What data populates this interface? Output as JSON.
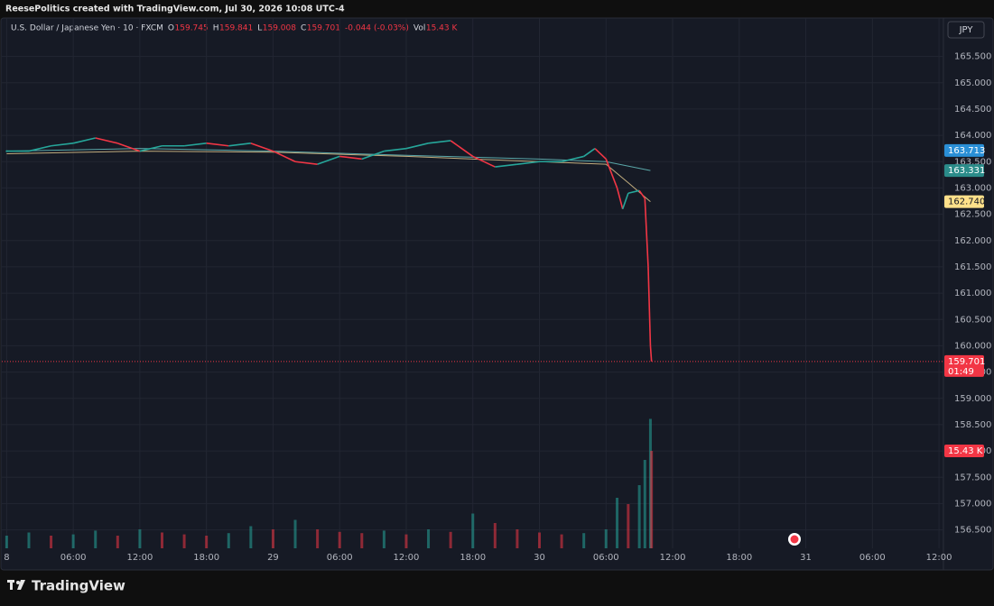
{
  "header": {
    "text": "ReesePolitics created with TradingView.com, Jul 30, 2026 10:08 UTC-4"
  },
  "footer": {
    "brand": "TradingView"
  },
  "currency_button": "JPY",
  "legend": {
    "symbol": "U.S. Dollar / Japanese Yen · 10 · FXCM",
    "open_label": "O",
    "open": 159.745,
    "high_label": "H",
    "high": 159.841,
    "low_label": "L",
    "low": 159.008,
    "close_label": "C",
    "close": 159.701,
    "change": -0.044,
    "change_pct": "(-0.03%)",
    "volume_label": "Vol",
    "volume": "15.43 K"
  },
  "chart_data": {
    "type": "line",
    "grid": true,
    "ylim": [
      156.15,
      166.23
    ],
    "yticks": [
      {
        "value": 156.5,
        "label": "156.500"
      },
      {
        "value": 157,
        "label": "157.000"
      },
      {
        "value": 157.5,
        "label": "157.500"
      },
      {
        "value": 158,
        "label": "158.000"
      },
      {
        "value": 158.5,
        "label": "158.500"
      },
      {
        "value": 159,
        "label": "159.000"
      },
      {
        "value": 159.5,
        "label": "159.500"
      },
      {
        "value": 160,
        "label": "160.000"
      },
      {
        "value": 160.5,
        "label": "160.500"
      },
      {
        "value": 161,
        "label": "161.000"
      },
      {
        "value": 161.5,
        "label": "161.500"
      },
      {
        "value": 162,
        "label": "162.000"
      },
      {
        "value": 162.5,
        "label": "162.500"
      },
      {
        "value": 163,
        "label": "163.000"
      },
      {
        "value": 163.5,
        "label": "163.500"
      },
      {
        "value": 164,
        "label": "164.000"
      },
      {
        "value": 164.5,
        "label": "164.500"
      },
      {
        "value": 165,
        "label": "165.000"
      },
      {
        "value": 165.5,
        "label": "165.500"
      }
    ],
    "xlim": [
      -0.6,
      84.4
    ],
    "xticks": [
      {
        "value": 0,
        "label": "8"
      },
      {
        "value": 6,
        "label": "06:00"
      },
      {
        "value": 12,
        "label": "12:00"
      },
      {
        "value": 18,
        "label": "18:00"
      },
      {
        "value": 24,
        "label": "29"
      },
      {
        "value": 30,
        "label": "06:00"
      },
      {
        "value": 36,
        "label": "12:00"
      },
      {
        "value": 42,
        "label": "18:00"
      },
      {
        "value": 48,
        "label": "30"
      },
      {
        "value": 54,
        "label": "06:00"
      },
      {
        "value": 60,
        "label": "12:00"
      },
      {
        "value": 66,
        "label": "18:00"
      },
      {
        "value": 72,
        "label": "31"
      },
      {
        "value": 78,
        "label": "06:00"
      },
      {
        "value": 84,
        "label": "12:00"
      }
    ],
    "up_color": "#26a69a",
    "down_color": "#f23645",
    "x": [
      0,
      2,
      4,
      6,
      8,
      10,
      12,
      14,
      16,
      18,
      20,
      22,
      24,
      26,
      28,
      30,
      32,
      34,
      36,
      38,
      40,
      42,
      44,
      46,
      48,
      50,
      52,
      53,
      54,
      55,
      55.5,
      56,
      57,
      57.5,
      57.8,
      58,
      58.1
    ],
    "values": [
      163.7,
      163.7,
      163.8,
      163.85,
      163.95,
      163.85,
      163.7,
      163.8,
      163.8,
      163.85,
      163.8,
      163.85,
      163.7,
      163.5,
      163.45,
      163.6,
      163.55,
      163.7,
      163.75,
      163.85,
      163.9,
      163.6,
      163.4,
      163.45,
      163.5,
      163.5,
      163.6,
      163.75,
      163.55,
      163.0,
      162.6,
      162.9,
      162.95,
      162.8,
      161.5,
      160.0,
      159.701
    ],
    "series": [
      {
        "color": "#5aa7a8",
        "x": [
          0,
          12,
          24,
          36,
          48,
          54,
          58
        ],
        "values": [
          163.7,
          163.75,
          163.7,
          163.62,
          163.55,
          163.5,
          163.331
        ]
      },
      {
        "color": "#c2ad7e",
        "x": [
          0,
          12,
          24,
          36,
          48,
          54,
          56,
          58
        ],
        "values": [
          163.65,
          163.7,
          163.68,
          163.6,
          163.5,
          163.45,
          163.1,
          162.74
        ]
      }
    ],
    "price_tags": [
      {
        "value": 163.713,
        "label": "163.713",
        "color": "#2a8fd6",
        "text_color": "#ffffff"
      },
      {
        "value": 163.331,
        "label": "163.331",
        "color": "#2b8c8a",
        "text_color": "#ffffff"
      },
      {
        "value": 162.74,
        "label": "162.740",
        "color": "#ffe08a",
        "text_color": "#131722"
      }
    ],
    "last_price": {
      "value": 159.701,
      "label": "159.701",
      "countdown": "01:49",
      "color": "#f23645"
    },
    "volume": {
      "vlim": [
        0,
        84
      ],
      "x": [
        0,
        2,
        4,
        6,
        8,
        10,
        12,
        14,
        16,
        18,
        20,
        22,
        24,
        26,
        28,
        30,
        32,
        34,
        36,
        38,
        40,
        42,
        44,
        46,
        48,
        50,
        52,
        54,
        55,
        56,
        57,
        57.5,
        58,
        58.1
      ],
      "values": [
        2,
        2.5,
        2,
        2.2,
        2.8,
        2,
        3,
        2.5,
        2.2,
        2,
        2.4,
        3.5,
        3,
        4.5,
        3,
        2.6,
        2.4,
        2.8,
        2.2,
        3,
        2.6,
        5.5,
        4,
        3,
        2.5,
        2.2,
        2.4,
        3,
        8,
        7,
        10,
        14,
        20.5,
        15.43
      ],
      "tag": {
        "value": 15.43,
        "label": "15.43 K",
        "color": "#f23645"
      }
    }
  }
}
